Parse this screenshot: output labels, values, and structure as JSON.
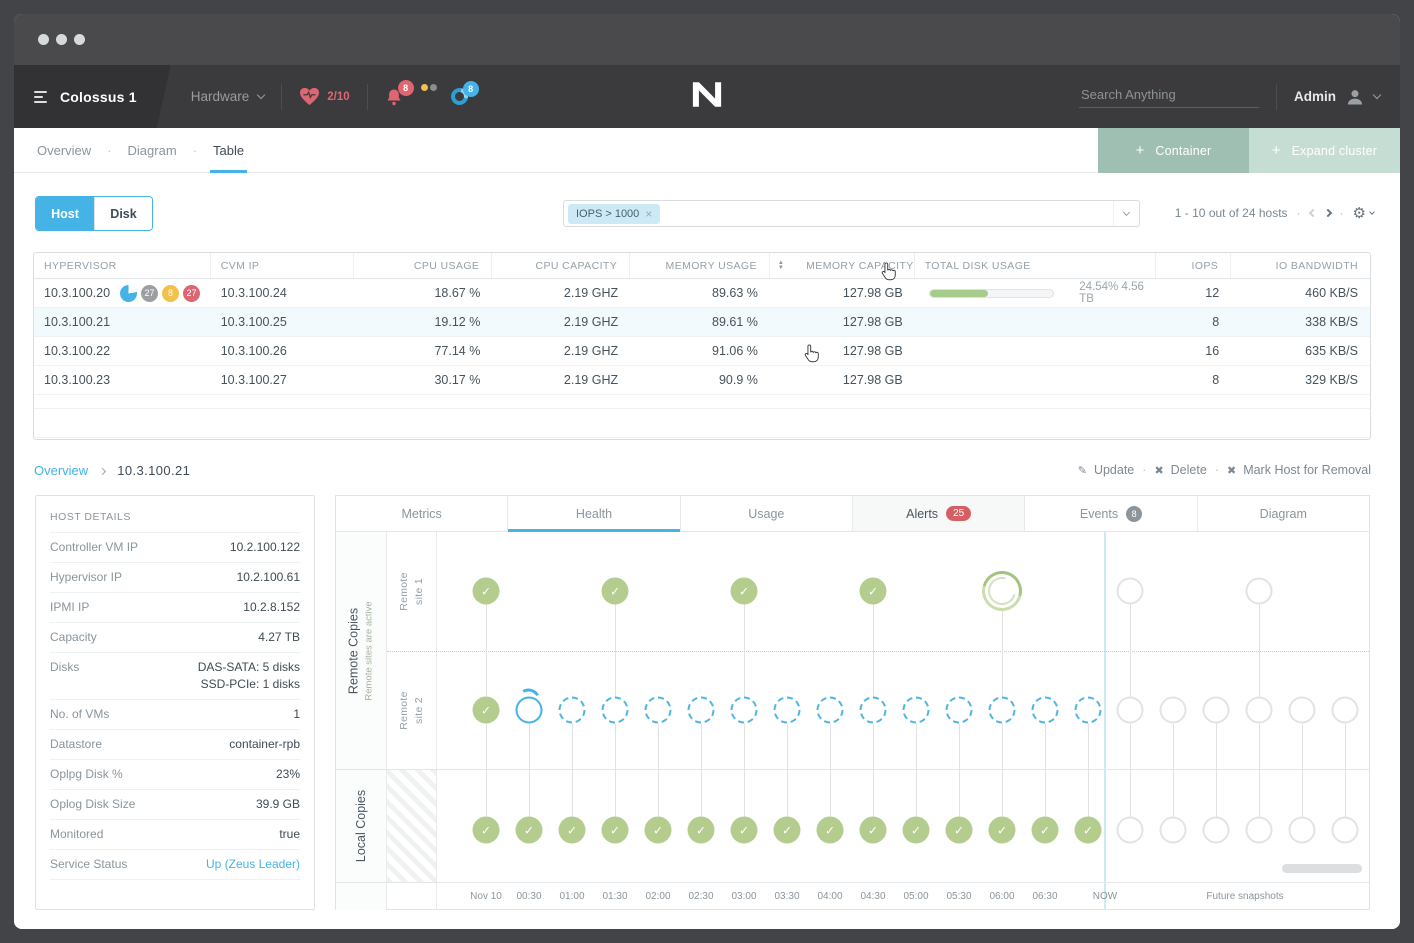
{
  "icons": {
    "dot": "·",
    "plus": "+",
    "check": "✓",
    "close_tag": "×",
    "pencil": "✎",
    "cross": "✖",
    "gear": "⚙",
    "sort_up": "▲",
    "sort_down": "▼"
  },
  "colors": {
    "accent": "#45b3e6",
    "success_green": "#b5cc8f",
    "alert_red": "#dd6672",
    "warn_yellow": "#f0c24b",
    "button_dark_green": "#9fbfb2",
    "button_light_green": "#c6ddd3"
  },
  "navbar": {
    "cluster_name": "Colossus 1",
    "nav_menu": "Hardware",
    "health_score": "2/10",
    "alerts_badge": "8",
    "tasks_badge": "8",
    "search_placeholder": "Search Anything",
    "user_name": "Admin"
  },
  "view_tabs": [
    {
      "label": "Overview",
      "active": false
    },
    {
      "label": "Diagram",
      "active": false
    },
    {
      "label": "Table",
      "active": true
    }
  ],
  "header_buttons": [
    {
      "label": "Container",
      "style": "dark"
    },
    {
      "label": "Expand cluster",
      "style": "light"
    }
  ],
  "toolbar": {
    "entity_toggle": [
      {
        "label": "Host",
        "active": true
      },
      {
        "label": "Disk",
        "active": false
      }
    ],
    "filter_tag": "IOPS > 1000",
    "pagination": "1 - 10 out of 24 hosts"
  },
  "table": {
    "columns": [
      "HYPERVISOR",
      "CVM IP",
      "CPU USAGE",
      "CPU CAPACITY",
      "MEMORY USAGE",
      "MEMORY CAPACITY",
      "TOTAL DISK USAGE",
      "IOPS",
      "IO BANDWIDTH"
    ],
    "rows": [
      {
        "hypervisor": "10.3.100.20",
        "badges": [
          {
            "type": "pie",
            "value": ""
          },
          {
            "type": "count",
            "color": "#9b9fa3",
            "value": "27"
          },
          {
            "type": "count",
            "color": "#f0c24b",
            "value": "8"
          },
          {
            "type": "count",
            "color": "#dd6672",
            "value": "27"
          }
        ],
        "cvm_ip": "10.3.100.24",
        "cpu_usage": "18.67 %",
        "cpu_capacity": "2.19 GHZ",
        "memory_usage": "89.63 %",
        "memory_capacity": "127.98 GB",
        "disk_usage": {
          "percent_fill": 47,
          "label": "24.54% 4.56 TB"
        },
        "iops": "12",
        "io_bandwidth": "460 KB/S",
        "highlighted": false
      },
      {
        "hypervisor": "10.3.100.21",
        "badges": [],
        "cvm_ip": "10.3.100.25",
        "cpu_usage": "19.12 %",
        "cpu_capacity": "2.19 GHZ",
        "memory_usage": "89.61 %",
        "memory_capacity": "127.98 GB",
        "disk_usage": null,
        "iops": "8",
        "io_bandwidth": "338 KB/S",
        "highlighted": true
      },
      {
        "hypervisor": "10.3.100.22",
        "badges": [],
        "cvm_ip": "10.3.100.26",
        "cpu_usage": "77.14 %",
        "cpu_capacity": "2.19 GHZ",
        "memory_usage": "91.06 %",
        "memory_capacity": "127.98 GB",
        "disk_usage": null,
        "iops": "16",
        "io_bandwidth": "635 KB/S",
        "highlighted": false
      },
      {
        "hypervisor": "10.3.100.23",
        "badges": [],
        "cvm_ip": "10.3.100.27",
        "cpu_usage": "30.17 %",
        "cpu_capacity": "2.19 GHZ",
        "memory_usage": "90.9 %",
        "memory_capacity": "127.98 GB",
        "disk_usage": null,
        "iops": "8",
        "io_bandwidth": "329 KB/S",
        "highlighted": false
      }
    ]
  },
  "detail_header": {
    "breadcrumb_parent": "Overview",
    "breadcrumb_current": "10.3.100.21",
    "actions": [
      {
        "label": "Update",
        "icon": "pencil"
      },
      {
        "label": "Delete",
        "icon": "cross"
      },
      {
        "label": "Mark Host for Removal",
        "icon": "cross"
      }
    ]
  },
  "host_details": {
    "title": "HOST DETAILS",
    "rows": [
      {
        "label": "Controller VM IP",
        "values": [
          "10.2.100.122"
        ]
      },
      {
        "label": "Hypervisor IP",
        "values": [
          "10.2.100.61"
        ]
      },
      {
        "label": "IPMI IP",
        "values": [
          "10.2.8.152"
        ]
      },
      {
        "label": "Capacity",
        "values": [
          "4.27 TB"
        ]
      },
      {
        "label": "Disks",
        "values": [
          "DAS-SATA: 5 disks",
          "SSD-PCIe: 1 disks"
        ]
      },
      {
        "label": "No. of VMs",
        "values": [
          "1"
        ]
      },
      {
        "label": "Datastore",
        "values": [
          "container-rpb"
        ]
      },
      {
        "label": "Oplpg Disk %",
        "values": [
          "23%"
        ]
      },
      {
        "label": "Oplog Disk Size",
        "values": [
          "39.9 GB"
        ]
      },
      {
        "label": "Monitored",
        "values": [
          "true"
        ]
      },
      {
        "label": "Service Status",
        "values": [
          "Up (Zeus Leader)"
        ],
        "link": true
      }
    ]
  },
  "detail_tabs": [
    {
      "label": "Metrics"
    },
    {
      "label": "Health",
      "active": true
    },
    {
      "label": "Usage"
    },
    {
      "label": "Alerts",
      "badge": "25",
      "badge_style": "red",
      "shaded": true
    },
    {
      "label": "Events",
      "badge": "8",
      "badge_style": "gray"
    },
    {
      "label": "Diagram"
    }
  ],
  "timeline": {
    "groups": [
      {
        "label": "Remote Copies",
        "sublabel": "Remote sites are active"
      },
      {
        "label": "Local Copies"
      }
    ],
    "lanes": [
      {
        "label_lines": [
          "Remote",
          "site 1"
        ]
      },
      {
        "label_lines": [
          "Remote",
          "site 2"
        ]
      }
    ],
    "axis_labels": [
      "Nov 10",
      "00:30",
      "01:00",
      "01:30",
      "02:00",
      "02:30",
      "03:00",
      "03:30",
      "04:00",
      "04:30",
      "05:00",
      "05:30",
      "06:00",
      "06:30"
    ],
    "now_label": "NOW",
    "future_label": "Future snapshots",
    "site1": [
      {
        "t": 0,
        "state": "done"
      },
      {
        "t": 3,
        "state": "done"
      },
      {
        "t": 6,
        "state": "done"
      },
      {
        "t": 9,
        "state": "done"
      },
      {
        "t": 12,
        "state": "loading"
      },
      {
        "t": 15,
        "state": "future"
      },
      {
        "t": 18,
        "state": "future"
      }
    ],
    "site2": [
      {
        "t": 0,
        "state": "done"
      },
      {
        "t": 1,
        "state": "progress"
      },
      {
        "t": 2,
        "state": "scheduled"
      },
      {
        "t": 3,
        "state": "scheduled"
      },
      {
        "t": 4,
        "state": "scheduled"
      },
      {
        "t": 5,
        "state": "scheduled"
      },
      {
        "t": 6,
        "state": "scheduled"
      },
      {
        "t": 7,
        "state": "scheduled"
      },
      {
        "t": 8,
        "state": "scheduled"
      },
      {
        "t": 9,
        "state": "scheduled"
      },
      {
        "t": 10,
        "state": "scheduled"
      },
      {
        "t": 11,
        "state": "scheduled"
      },
      {
        "t": 12,
        "state": "scheduled"
      },
      {
        "t": 13,
        "state": "scheduled"
      },
      {
        "t": 14,
        "state": "scheduled"
      },
      {
        "t": 15,
        "state": "future"
      },
      {
        "t": 16,
        "state": "future"
      },
      {
        "t": 17,
        "state": "future"
      },
      {
        "t": 18,
        "state": "future"
      },
      {
        "t": 19,
        "state": "future"
      },
      {
        "t": 20,
        "state": "future"
      }
    ],
    "local": [
      {
        "t": 0,
        "state": "done"
      },
      {
        "t": 1,
        "state": "done"
      },
      {
        "t": 2,
        "state": "done"
      },
      {
        "t": 3,
        "state": "done"
      },
      {
        "t": 4,
        "state": "done"
      },
      {
        "t": 5,
        "state": "done"
      },
      {
        "t": 6,
        "state": "done"
      },
      {
        "t": 7,
        "state": "done"
      },
      {
        "t": 8,
        "state": "done"
      },
      {
        "t": 9,
        "state": "done"
      },
      {
        "t": 10,
        "state": "done"
      },
      {
        "t": 11,
        "state": "done"
      },
      {
        "t": 12,
        "state": "done"
      },
      {
        "t": 13,
        "state": "done"
      },
      {
        "t": 14,
        "state": "done"
      },
      {
        "t": 15,
        "state": "future"
      },
      {
        "t": 16,
        "state": "future"
      },
      {
        "t": 17,
        "state": "future"
      },
      {
        "t": 18,
        "state": "future"
      },
      {
        "t": 19,
        "state": "future"
      },
      {
        "t": 20,
        "state": "future"
      }
    ]
  }
}
